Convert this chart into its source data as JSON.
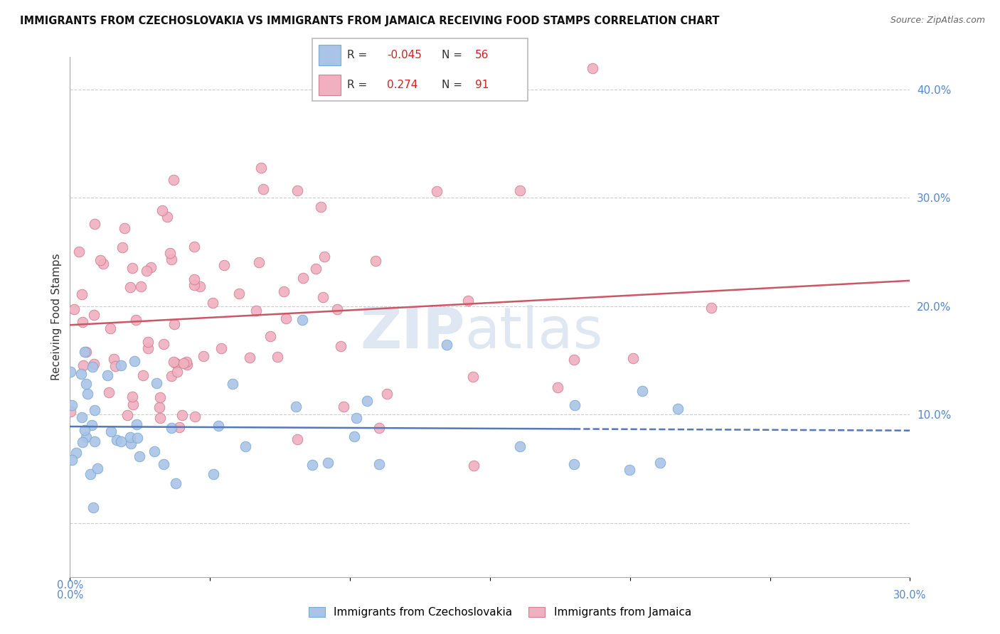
{
  "title": "IMMIGRANTS FROM CZECHOSLOVAKIA VS IMMIGRANTS FROM JAMAICA RECEIVING FOOD STAMPS CORRELATION CHART",
  "source": "Source: ZipAtlas.com",
  "ylabel": "Receiving Food Stamps",
  "xlim": [
    0.0,
    30.0
  ],
  "ylim": [
    -5.0,
    43.0
  ],
  "blue_color": "#aac4e8",
  "blue_edge": "#7aaad0",
  "pink_color": "#f0b0c0",
  "pink_edge": "#d08090",
  "blue_line_color": "#5577bb",
  "pink_line_color": "#cc5566",
  "legend_R_blue": "-0.045",
  "legend_N_blue": "56",
  "legend_R_pink": "0.274",
  "legend_N_pink": "91",
  "watermark_color": "#c8d8ea",
  "ytick_color": "#5588cc",
  "title_color": "#111111",
  "source_color": "#666666"
}
